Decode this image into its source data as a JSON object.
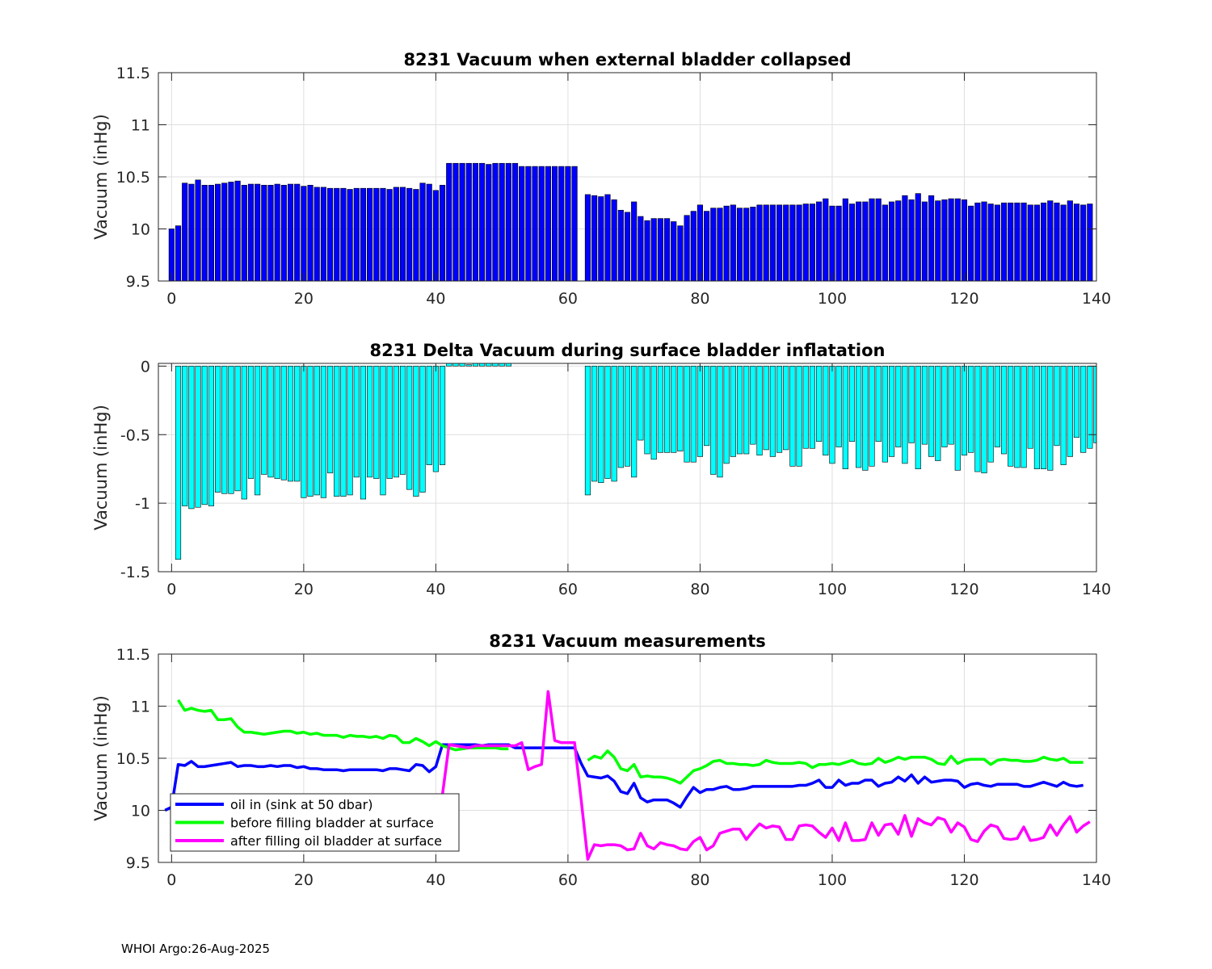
{
  "footer": "WHOI Argo:26-Aug-2025",
  "chart_data": [
    {
      "type": "bar",
      "title": "8231 Vacuum when external bladder collapsed",
      "xlabel": "",
      "ylabel": "Vacuum (inHg)",
      "xlim": [
        -2,
        140
      ],
      "ylim": [
        9.5,
        11.5
      ],
      "xticks": [
        "0",
        "20",
        "40",
        "60",
        "80",
        "100",
        "120",
        "140"
      ],
      "yticks": [
        "9.5",
        "10",
        "10.5",
        "11",
        "11.5"
      ],
      "bar_color": "#0000ff",
      "grid": true,
      "x_start": 0,
      "values": [
        10.0,
        10.03,
        10.44,
        10.43,
        10.47,
        10.42,
        10.42,
        10.43,
        10.44,
        10.45,
        10.46,
        10.42,
        10.43,
        10.43,
        10.42,
        10.42,
        10.43,
        10.42,
        10.43,
        10.43,
        10.41,
        10.42,
        10.4,
        10.4,
        10.39,
        10.39,
        10.39,
        10.38,
        10.39,
        10.39,
        10.39,
        10.39,
        10.39,
        10.38,
        10.4,
        10.4,
        10.39,
        10.38,
        10.44,
        10.43,
        10.37,
        10.42,
        10.63,
        10.63,
        10.63,
        10.63,
        10.63,
        10.63,
        10.62,
        10.63,
        10.63,
        10.63,
        10.63,
        10.6,
        10.6,
        10.6,
        10.6,
        10.6,
        10.6,
        10.6,
        10.6,
        10.6,
        null,
        10.33,
        10.32,
        10.31,
        10.33,
        10.28,
        10.18,
        10.16,
        10.26,
        10.12,
        10.08,
        10.1,
        10.1,
        10.1,
        10.07,
        10.03,
        10.13,
        10.17,
        10.23,
        10.17,
        10.2,
        10.2,
        10.22,
        10.23,
        10.2,
        10.2,
        10.21,
        10.23,
        10.23,
        10.23,
        10.23,
        10.23,
        10.23,
        10.23,
        10.24,
        10.24,
        10.26,
        10.29,
        10.22,
        10.22,
        10.29,
        10.24,
        10.26,
        10.26,
        10.29,
        10.29,
        10.23,
        10.26,
        10.27,
        10.32,
        10.28,
        10.34,
        10.26,
        10.32,
        10.27,
        10.28,
        10.29,
        10.29,
        10.28,
        10.22,
        10.25,
        10.26,
        10.24,
        10.23,
        10.25,
        10.25,
        10.25,
        10.25,
        10.23,
        10.23,
        10.25,
        10.27,
        10.25,
        10.23,
        10.27,
        10.24,
        10.23,
        10.24
      ]
    },
    {
      "type": "bar",
      "title": "8231 Delta Vacuum during surface bladder inflatation",
      "xlabel": "",
      "ylabel": "Vacuum (inHg)",
      "xlim": [
        -2,
        140
      ],
      "ylim": [
        -1.5,
        0.02
      ],
      "xticks": [
        "0",
        "20",
        "40",
        "60",
        "80",
        "100",
        "120",
        "140"
      ],
      "yticks": [
        "-1.5",
        "-1",
        "-0.5",
        "0"
      ],
      "bar_color": "#00ffff",
      "grid": true,
      "x_start": 1,
      "values": [
        -1.41,
        -1.02,
        -1.04,
        -1.03,
        -1.01,
        -1.02,
        -0.92,
        -0.93,
        -0.93,
        -0.91,
        -0.97,
        -0.82,
        -0.94,
        -0.79,
        -0.81,
        -0.82,
        -0.83,
        -0.84,
        -0.84,
        -0.96,
        -0.95,
        -0.94,
        -0.96,
        -0.78,
        -0.95,
        -0.95,
        -0.94,
        -0.81,
        -0.97,
        -0.81,
        -0.82,
        -0.94,
        -0.82,
        -0.81,
        -0.79,
        -0.9,
        -0.95,
        -0.92,
        -0.72,
        -0.77,
        -0.72,
        0.02,
        0.02,
        0.02,
        0.01,
        0.02,
        0.02,
        0.02,
        0.03,
        0.03,
        0.03,
        null,
        null,
        null,
        null,
        null,
        null,
        null,
        null,
        null,
        null,
        null,
        -0.94,
        -0.84,
        -0.85,
        -0.82,
        -0.84,
        -0.74,
        -0.73,
        -0.81,
        -0.54,
        -0.64,
        -0.68,
        -0.63,
        -0.63,
        -0.63,
        -0.62,
        -0.7,
        -0.7,
        -0.66,
        -0.58,
        -0.79,
        -0.81,
        -0.71,
        -0.66,
        -0.64,
        -0.64,
        -0.57,
        -0.65,
        -0.61,
        -0.66,
        -0.63,
        -0.61,
        -0.73,
        -0.73,
        -0.6,
        -0.6,
        -0.55,
        -0.65,
        -0.71,
        -0.59,
        -0.75,
        -0.55,
        -0.74,
        -0.76,
        -0.73,
        -0.55,
        -0.7,
        -0.66,
        -0.59,
        -0.71,
        -0.56,
        -0.75,
        -0.57,
        -0.66,
        -0.69,
        -0.59,
        -0.57,
        -0.76,
        -0.65,
        -0.63,
        -0.77,
        -0.78,
        -0.7,
        -0.59,
        -0.64,
        -0.73,
        -0.74,
        -0.74,
        -0.6,
        -0.75,
        -0.75,
        -0.76,
        -0.58,
        -0.72,
        -0.66,
        -0.52,
        -0.63,
        -0.6,
        -0.56
      ]
    },
    {
      "type": "line",
      "title": "8231 Vacuum measurements",
      "xlabel": "",
      "ylabel": "Vacuum (inHg)",
      "xlim": [
        -2,
        140
      ],
      "ylim": [
        9.5,
        11.5
      ],
      "xticks": [
        "0",
        "20",
        "40",
        "60",
        "80",
        "100",
        "120",
        "140"
      ],
      "yticks": [
        "9.5",
        "10",
        "10.5",
        "11",
        "11.5"
      ],
      "grid": true,
      "legend_position": "bottom-left",
      "series": [
        {
          "name": "oil in (sink at 50 dbar)",
          "color": "#0000ff",
          "x_start": -1,
          "values": [
            10.0,
            10.03,
            10.44,
            10.43,
            10.47,
            10.42,
            10.42,
            10.43,
            10.44,
            10.45,
            10.46,
            10.42,
            10.43,
            10.43,
            10.42,
            10.42,
            10.43,
            10.42,
            10.43,
            10.43,
            10.41,
            10.42,
            10.4,
            10.4,
            10.39,
            10.39,
            10.39,
            10.38,
            10.39,
            10.39,
            10.39,
            10.39,
            10.39,
            10.38,
            10.4,
            10.4,
            10.39,
            10.38,
            10.44,
            10.43,
            10.37,
            10.42,
            10.63,
            10.63,
            10.63,
            10.63,
            10.63,
            10.63,
            10.62,
            10.63,
            10.63,
            10.63,
            10.63,
            10.6,
            10.6,
            10.6,
            10.6,
            10.6,
            10.6,
            10.6,
            10.6,
            10.6,
            10.6,
            10.45,
            10.33,
            10.32,
            10.31,
            10.33,
            10.28,
            10.18,
            10.16,
            10.26,
            10.12,
            10.08,
            10.1,
            10.1,
            10.1,
            10.07,
            10.03,
            10.13,
            10.22,
            10.17,
            10.2,
            10.2,
            10.22,
            10.23,
            10.2,
            10.2,
            10.21,
            10.23,
            10.23,
            10.23,
            10.23,
            10.23,
            10.23,
            10.23,
            10.24,
            10.24,
            10.26,
            10.29,
            10.22,
            10.22,
            10.29,
            10.24,
            10.26,
            10.26,
            10.29,
            10.29,
            10.23,
            10.26,
            10.27,
            10.32,
            10.28,
            10.34,
            10.26,
            10.32,
            10.27,
            10.28,
            10.29,
            10.29,
            10.28,
            10.22,
            10.25,
            10.26,
            10.24,
            10.23,
            10.25,
            10.25,
            10.25,
            10.25,
            10.23,
            10.23,
            10.25,
            10.27,
            10.25,
            10.23,
            10.27,
            10.24,
            10.23,
            10.24
          ]
        },
        {
          "name": "before filling bladder at surface",
          "color": "#00ff00",
          "x_start": 1,
          "values": [
            11.06,
            10.96,
            10.98,
            10.96,
            10.95,
            10.96,
            10.87,
            10.87,
            10.88,
            10.8,
            10.75,
            10.75,
            10.74,
            10.73,
            10.74,
            10.75,
            10.76,
            10.76,
            10.74,
            10.75,
            10.73,
            10.74,
            10.72,
            10.72,
            10.72,
            10.7,
            10.72,
            10.71,
            10.71,
            10.7,
            10.71,
            10.69,
            10.72,
            10.71,
            10.65,
            10.65,
            10.69,
            10.66,
            10.62,
            10.66,
            10.62,
            10.6,
            10.58,
            10.59,
            10.6,
            10.6,
            10.6,
            10.6,
            10.6,
            10.59,
            10.59,
            null,
            null,
            null,
            null,
            null,
            null,
            null,
            null,
            null,
            null,
            null,
            10.48,
            10.52,
            10.5,
            10.57,
            10.51,
            10.4,
            10.38,
            10.44,
            10.32,
            10.33,
            10.32,
            10.32,
            10.31,
            10.29,
            10.26,
            10.32,
            10.38,
            10.4,
            10.43,
            10.47,
            10.48,
            10.45,
            10.45,
            10.44,
            10.44,
            10.43,
            10.44,
            10.48,
            10.46,
            10.45,
            10.45,
            10.45,
            10.46,
            10.45,
            10.41,
            10.44,
            10.44,
            10.45,
            10.44,
            10.46,
            10.48,
            10.45,
            10.44,
            10.45,
            10.5,
            10.46,
            10.48,
            10.51,
            10.49,
            10.51,
            10.51,
            10.51,
            10.49,
            10.45,
            10.44,
            10.52,
            10.45,
            10.48,
            10.49,
            10.49,
            10.49,
            10.44,
            10.48,
            10.49,
            10.48,
            10.48,
            10.47,
            10.47,
            10.48,
            10.51,
            10.49,
            10.48,
            10.5,
            10.46,
            10.46,
            10.46
          ]
        },
        {
          "name": "after filling oil bladder at surface",
          "color": "#ff00ff",
          "x_start": 41,
          "values": [
            10.15,
            10.63,
            10.62,
            10.61,
            10.6,
            10.62,
            10.62,
            10.62,
            10.62,
            10.62,
            10.62,
            10.62,
            10.65,
            10.39,
            10.42,
            10.44,
            11.14,
            10.67,
            10.65,
            10.65,
            10.65,
            10.1,
            9.53,
            9.67,
            9.66,
            9.67,
            9.67,
            9.66,
            9.62,
            9.63,
            9.78,
            9.66,
            9.63,
            9.69,
            9.67,
            9.66,
            9.63,
            9.62,
            9.7,
            9.74,
            9.62,
            9.66,
            9.78,
            9.8,
            9.82,
            9.82,
            9.72,
            9.8,
            9.87,
            9.83,
            9.85,
            9.84,
            9.72,
            9.72,
            9.85,
            9.86,
            9.85,
            9.79,
            9.74,
            9.83,
            9.71,
            9.88,
            9.71,
            9.71,
            9.72,
            9.88,
            9.76,
            9.86,
            9.87,
            9.77,
            9.95,
            9.75,
            9.92,
            9.88,
            9.86,
            9.93,
            9.91,
            9.79,
            9.88,
            9.84,
            9.72,
            9.7,
            9.8,
            9.86,
            9.84,
            9.73,
            9.72,
            9.73,
            9.84,
            9.71,
            9.72,
            9.74,
            9.86,
            9.76,
            9.86,
            9.94,
            9.79,
            9.85,
            9.89
          ]
        }
      ]
    }
  ]
}
